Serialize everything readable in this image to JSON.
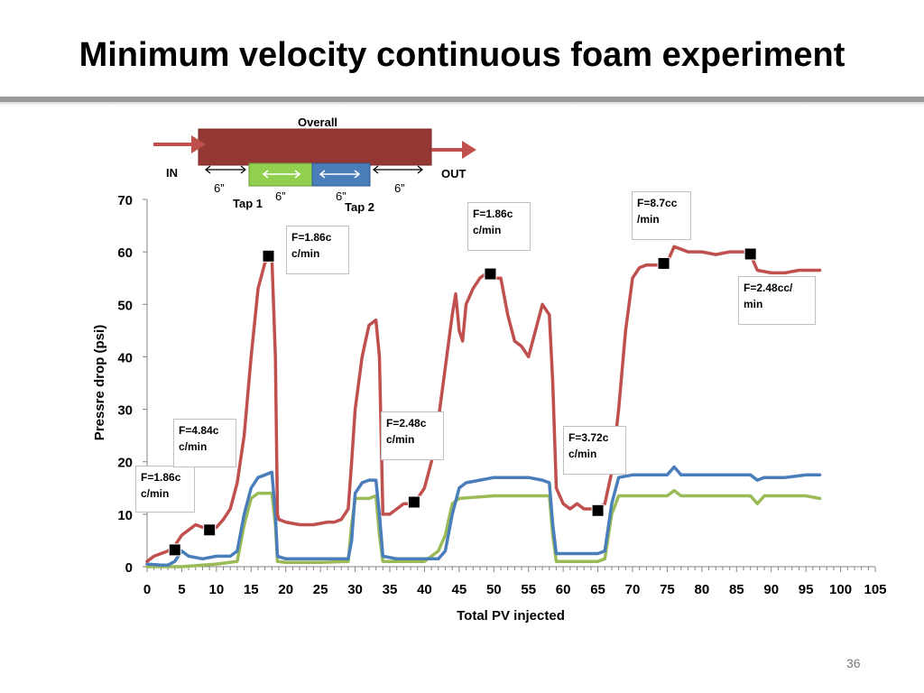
{
  "slide": {
    "title": "Minimum velocity continuous foam experiment",
    "page_number": "36"
  },
  "schematic": {
    "overall_label": "Overall",
    "in_label": "IN",
    "out_label": "OUT",
    "tap1_label": "Tap 1",
    "tap2_label": "Tap 2",
    "segment_labels": [
      "6”",
      "6”",
      "6”",
      "6”"
    ],
    "colors": {
      "overall": "#953735",
      "tap1": "#92d050",
      "tap2": "#4a7ebb",
      "arrow": "#c0504d"
    }
  },
  "chart_data": {
    "type": "line",
    "title": "",
    "xlabel": "Total PV injected",
    "ylabel": "Pressre drop (psi)",
    "xlim": [
      0,
      105
    ],
    "ylim": [
      0,
      70
    ],
    "x_ticks": [
      "0",
      "5",
      "10",
      "15",
      "20",
      "25",
      "30",
      "35",
      "40",
      "45",
      "50",
      "55",
      "60",
      "65",
      "70",
      "75",
      "80",
      "85",
      "90",
      "95",
      "100",
      "105"
    ],
    "y_ticks": [
      "0",
      "10",
      "20",
      "30",
      "40",
      "50",
      "60",
      "70"
    ],
    "grid": false,
    "legend": "none",
    "series": [
      {
        "color": "#c0504d",
        "points": [
          [
            0,
            1
          ],
          [
            1,
            2
          ],
          [
            2,
            2.5
          ],
          [
            3,
            3
          ],
          [
            4,
            4
          ],
          [
            5,
            6
          ],
          [
            6,
            7
          ],
          [
            7,
            8
          ],
          [
            8,
            7.5
          ],
          [
            9,
            7
          ],
          [
            10,
            7.5
          ],
          [
            11,
            9
          ],
          [
            12,
            11
          ],
          [
            13,
            16
          ],
          [
            14,
            25
          ],
          [
            15,
            40
          ],
          [
            16,
            53
          ],
          [
            17,
            58
          ],
          [
            18,
            59
          ],
          [
            18.5,
            40
          ],
          [
            18.8,
            10
          ],
          [
            19,
            9
          ],
          [
            20,
            8.5
          ],
          [
            22,
            8
          ],
          [
            24,
            8
          ],
          [
            26,
            8.5
          ],
          [
            27,
            8.5
          ],
          [
            28,
            9
          ],
          [
            29,
            11
          ],
          [
            29.5,
            20
          ],
          [
            30,
            30
          ],
          [
            31,
            40
          ],
          [
            32,
            46
          ],
          [
            33,
            47
          ],
          [
            33.5,
            40
          ],
          [
            34,
            10
          ],
          [
            35,
            10
          ],
          [
            36,
            11
          ],
          [
            37,
            12
          ],
          [
            38,
            12
          ],
          [
            39,
            13
          ],
          [
            40,
            15
          ],
          [
            41,
            20
          ],
          [
            42,
            28
          ],
          [
            43,
            38
          ],
          [
            44,
            48
          ],
          [
            44.5,
            52
          ],
          [
            45,
            45
          ],
          [
            45.5,
            43
          ],
          [
            46,
            50
          ],
          [
            47,
            53
          ],
          [
            48,
            55
          ],
          [
            49,
            56
          ],
          [
            50,
            55
          ],
          [
            51,
            55
          ],
          [
            52,
            48
          ],
          [
            53,
            43
          ],
          [
            54,
            42
          ],
          [
            55,
            40
          ],
          [
            56,
            45
          ],
          [
            57,
            50
          ],
          [
            58,
            48
          ],
          [
            58.5,
            35
          ],
          [
            59,
            15
          ],
          [
            60,
            12
          ],
          [
            61,
            11
          ],
          [
            62,
            12
          ],
          [
            63,
            11
          ],
          [
            64,
            11
          ],
          [
            65,
            11
          ],
          [
            66,
            12
          ],
          [
            67,
            18
          ],
          [
            68,
            30
          ],
          [
            69,
            45
          ],
          [
            70,
            55
          ],
          [
            71,
            57
          ],
          [
            72,
            57.5
          ],
          [
            73,
            57.5
          ],
          [
            74,
            57.5
          ],
          [
            75,
            58
          ],
          [
            76,
            61
          ],
          [
            77,
            60.5
          ],
          [
            78,
            60
          ],
          [
            80,
            60
          ],
          [
            82,
            59.5
          ],
          [
            84,
            60
          ],
          [
            86,
            60
          ],
          [
            87,
            59.5
          ],
          [
            88,
            56.5
          ],
          [
            90,
            56
          ],
          [
            92,
            56
          ],
          [
            94,
            56.5
          ],
          [
            96,
            56.5
          ],
          [
            97,
            56.5
          ]
        ]
      },
      {
        "color": "#4a7ebb",
        "points": [
          [
            0,
            0.5
          ],
          [
            2,
            0.3
          ],
          [
            3,
            0.3
          ],
          [
            4,
            1
          ],
          [
            5,
            3
          ],
          [
            6,
            2
          ],
          [
            8,
            1.5
          ],
          [
            10,
            2
          ],
          [
            12,
            2
          ],
          [
            13,
            3
          ],
          [
            14,
            10
          ],
          [
            15,
            15
          ],
          [
            16,
            17
          ],
          [
            17,
            17.5
          ],
          [
            18,
            18
          ],
          [
            18.5,
            10
          ],
          [
            18.8,
            2
          ],
          [
            20,
            1.5
          ],
          [
            25,
            1.5
          ],
          [
            29,
            1.5
          ],
          [
            29.5,
            5
          ],
          [
            30,
            14
          ],
          [
            31,
            16
          ],
          [
            32,
            16.5
          ],
          [
            33,
            16.5
          ],
          [
            33.5,
            10
          ],
          [
            34,
            2
          ],
          [
            36,
            1.5
          ],
          [
            38,
            1.5
          ],
          [
            40,
            1.5
          ],
          [
            42,
            1.5
          ],
          [
            43,
            3
          ],
          [
            44,
            10
          ],
          [
            45,
            15
          ],
          [
            46,
            16
          ],
          [
            48,
            16.5
          ],
          [
            50,
            17
          ],
          [
            55,
            17
          ],
          [
            57,
            16.5
          ],
          [
            58,
            16
          ],
          [
            58.5,
            8
          ],
          [
            59,
            2.5
          ],
          [
            62,
            2.5
          ],
          [
            65,
            2.5
          ],
          [
            66,
            3
          ],
          [
            67,
            12
          ],
          [
            68,
            17
          ],
          [
            70,
            17.5
          ],
          [
            75,
            17.5
          ],
          [
            76,
            19
          ],
          [
            77,
            17.5
          ],
          [
            85,
            17.5
          ],
          [
            87,
            17.5
          ],
          [
            88,
            16.5
          ],
          [
            89,
            17
          ],
          [
            92,
            17
          ],
          [
            95,
            17.5
          ],
          [
            97,
            17.5
          ]
        ]
      },
      {
        "color": "#9bbb59",
        "points": [
          [
            0,
            0
          ],
          [
            5,
            0
          ],
          [
            10,
            0.5
          ],
          [
            13,
            1
          ],
          [
            14,
            8
          ],
          [
            15,
            13
          ],
          [
            16,
            14
          ],
          [
            17,
            14
          ],
          [
            18,
            14
          ],
          [
            18.5,
            8
          ],
          [
            18.8,
            1
          ],
          [
            20,
            0.8
          ],
          [
            25,
            0.8
          ],
          [
            29,
            1
          ],
          [
            29.5,
            8
          ],
          [
            30,
            13
          ],
          [
            32,
            13
          ],
          [
            33,
            13.5
          ],
          [
            33.5,
            6
          ],
          [
            34,
            1
          ],
          [
            38,
            1
          ],
          [
            40,
            1
          ],
          [
            42,
            3
          ],
          [
            43,
            6
          ],
          [
            44,
            12
          ],
          [
            45,
            13
          ],
          [
            50,
            13.5
          ],
          [
            55,
            13.5
          ],
          [
            58,
            13.5
          ],
          [
            58.5,
            6
          ],
          [
            59,
            1
          ],
          [
            62,
            1
          ],
          [
            65,
            1
          ],
          [
            66,
            1.5
          ],
          [
            67,
            10
          ],
          [
            68,
            13.5
          ],
          [
            70,
            13.5
          ],
          [
            75,
            13.5
          ],
          [
            76,
            14.5
          ],
          [
            77,
            13.5
          ],
          [
            85,
            13.5
          ],
          [
            87,
            13.5
          ],
          [
            88,
            12
          ],
          [
            89,
            13.5
          ],
          [
            95,
            13.5
          ],
          [
            97,
            13
          ]
        ]
      }
    ],
    "markers": [
      [
        4,
        3.2
      ],
      [
        9,
        7
      ],
      [
        17.5,
        59.2
      ],
      [
        38.5,
        12.3
      ],
      [
        49.5,
        55.8
      ],
      [
        65,
        10.7
      ],
      [
        74.5,
        57.8
      ],
      [
        87,
        59.6
      ]
    ],
    "annotations": [
      "F=1.86c\nc/min",
      "F=4.84c\nc/min",
      "F=1.86c\nc/min",
      "F=2.48c\nc/min",
      "F=1.86c\nc/min",
      "F=3.72c\nc/min",
      "F=8.7cc\n/min",
      "F=2.48cc/\nmin"
    ]
  }
}
